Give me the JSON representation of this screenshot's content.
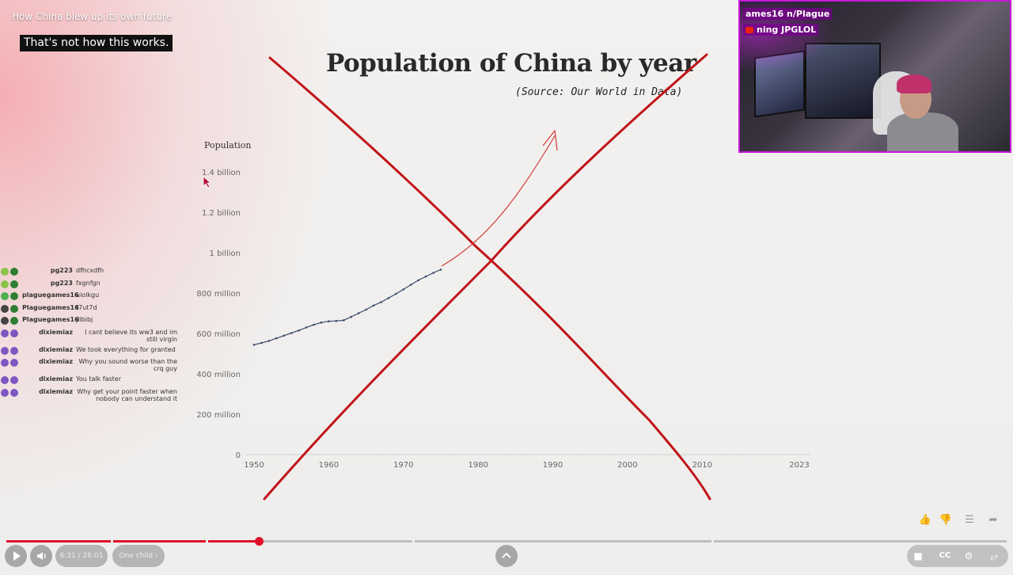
{
  "video": {
    "title": "How China blew up its own future",
    "caption": "That's not how this works."
  },
  "slide": {
    "title": "Population of China by year",
    "source": "(Source: Our World in Data)"
  },
  "chart_data": {
    "type": "line",
    "title": "Population of China by year",
    "ylabel": "Population",
    "xlabel": "",
    "xlim": [
      1950,
      2023
    ],
    "ylim": [
      0,
      1400000000
    ],
    "x_ticks": [
      "1950",
      "1960",
      "1970",
      "1980",
      "1990",
      "2000",
      "2010",
      "2023"
    ],
    "y_ticks": [
      "0",
      "200 million",
      "400 million",
      "600 million",
      "800 million",
      "1 billion",
      "1.2 billion",
      "1.4 billion"
    ],
    "grid": false,
    "series": [
      {
        "x": [
          1950,
          1951,
          1952,
          1953,
          1954,
          1955,
          1956,
          1957,
          1958,
          1959,
          1960,
          1961,
          1962,
          1963,
          1964,
          1965,
          1966,
          1967,
          1968,
          1969,
          1970,
          1971,
          1972,
          1973,
          1974,
          1975
        ],
        "y": [
          544000000,
          553000000,
          563000000,
          576000000,
          589000000,
          602000000,
          615000000,
          630000000,
          643000000,
          654000000,
          660000000,
          662000000,
          665000000,
          682000000,
          700000000,
          718000000,
          738000000,
          755000000,
          775000000,
          796000000,
          818000000,
          841000000,
          863000000,
          882000000,
          900000000,
          916000000
        ],
        "color": "#3b4a6b"
      }
    ]
  },
  "annotations": {
    "cross_color": "#c0141a",
    "arrow_color": "#d23a3a"
  },
  "webcam": {
    "tag1": "ames16 n/Plague",
    "tag2": "ning JPGLOL"
  },
  "chat": [
    {
      "name": "pg223",
      "msg": "dfhcxdfh",
      "badges": [
        "#8bc34a",
        "#2e7d32"
      ]
    },
    {
      "name": "pg223",
      "msg": "fxgnfgn",
      "badges": [
        "#8bc34a",
        "#2e7d32"
      ]
    },
    {
      "name": "plaguegames16",
      "msg": "uiolkgu",
      "badges": [
        "#4caf50",
        "#2e7d32"
      ]
    },
    {
      "name": "Plaguegames16",
      "msg": "t7ut7d",
      "badges": [
        "#444",
        "#2e7d32"
      ]
    },
    {
      "name": "Plaguegames16",
      "msg": "jlibibj",
      "badges": [
        "#444",
        "#2e7d32"
      ]
    },
    {
      "name": "dixiemiaz",
      "msg": "I cant believe its ww3 and im still virgin",
      "badges": [
        "#7e57c2",
        "#7e57c2"
      ]
    },
    {
      "name": "dixiemiaz",
      "msg": "We took everything for granted",
      "badges": [
        "#7e57c2",
        "#7e57c2"
      ]
    },
    {
      "name": "dixiemiaz",
      "msg": "Why you sound worse than the crq guy",
      "badges": [
        "#7e57c2",
        "#7e57c2"
      ]
    },
    {
      "name": "dixiemiaz",
      "msg": "You talk faster",
      "badges": [
        "#7e57c2",
        "#7e57c2"
      ]
    },
    {
      "name": "dixiemiaz",
      "msg": "Why get your point faster when nobody can understand it",
      "badges": [
        "#7e57c2",
        "#7e57c2"
      ]
    }
  ],
  "player": {
    "time": "6:31 / 26:01",
    "chapter": "One child",
    "progress": 0.252
  }
}
